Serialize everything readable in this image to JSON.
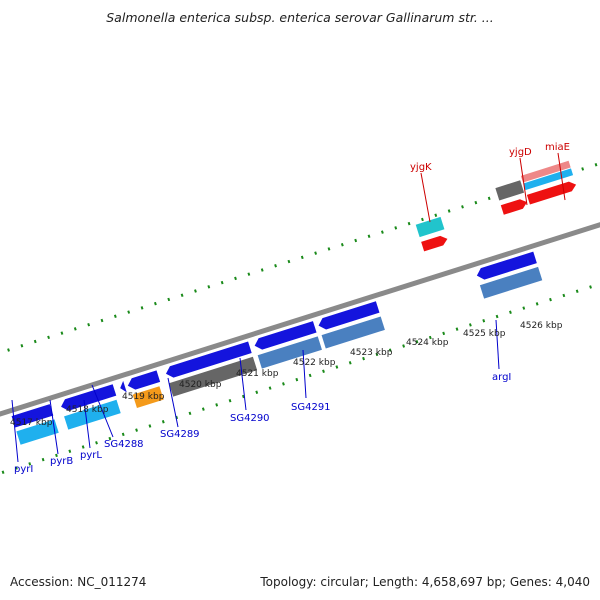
{
  "title": "Salmonella enterica subsp. enterica serovar Gallinarum str. ...",
  "footer": {
    "accession": "Accession: NC_011274",
    "summary": "Topology: circular; Length: 4,658,697 bp; Genes: 4,040"
  },
  "colors": {
    "backbone": "#8a8a8a",
    "ticks": "#1a8a1a",
    "top_label": "#cc0000",
    "bottom_label": "#0000cc",
    "scale_label": "#222222"
  },
  "scale": {
    "unit": "kbp",
    "labels": [
      "4517 kbp",
      "4518 kbp",
      "4519 kbp",
      "4520 kbp",
      "4521 kbp",
      "4522 kbp",
      "4523 kbp",
      "4524 kbp",
      "4525 kbp",
      "4526 kbp"
    ]
  },
  "top_gene_labels": [
    "yjgK",
    "yjgD",
    "miaE"
  ],
  "bottom_gene_labels": [
    "pyrI",
    "pyrB",
    "pyrL",
    "SG4288",
    "SG4289",
    "SG4290",
    "SG4291",
    "argI"
  ]
}
